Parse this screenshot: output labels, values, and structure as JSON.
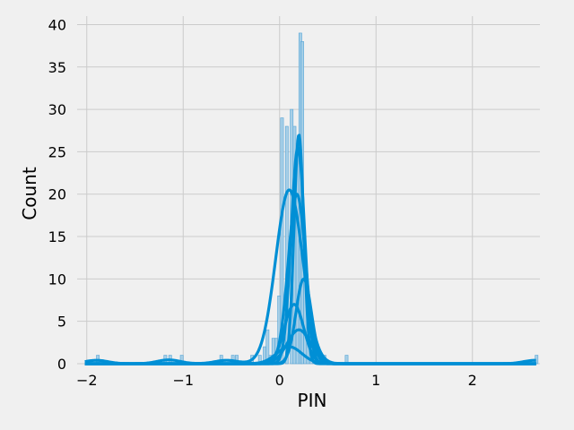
{
  "chart_data": {
    "type": "bar",
    "style": "histogram with kde overlay",
    "title": "",
    "xlabel": "PIN",
    "ylabel": "Count",
    "xlim": [
      -2.1,
      2.7
    ],
    "ylim": [
      0,
      41
    ],
    "xticks": [
      -2,
      -1,
      0,
      1,
      2
    ],
    "xtick_labels": [
      "−2",
      "−1",
      "0",
      "1",
      "2"
    ],
    "yticks": [
      0,
      5,
      10,
      15,
      20,
      25,
      30,
      35,
      40
    ],
    "grid": true,
    "colors": {
      "bar": "#9fcbe6",
      "bar_edge": "#55a5d7",
      "kde": "#008fd5",
      "background": "#f0f0f0",
      "grid": "#cbcbcb"
    },
    "bin_width": 0.03,
    "bins": [
      {
        "x": -1.9,
        "count": 1
      },
      {
        "x": -1.2,
        "count": 1
      },
      {
        "x": -1.15,
        "count": 1
      },
      {
        "x": -1.03,
        "count": 1
      },
      {
        "x": -0.62,
        "count": 1
      },
      {
        "x": -0.5,
        "count": 1
      },
      {
        "x": -0.46,
        "count": 1
      },
      {
        "x": -0.3,
        "count": 1
      },
      {
        "x": -0.22,
        "count": 1
      },
      {
        "x": -0.17,
        "count": 2
      },
      {
        "x": -0.14,
        "count": 4
      },
      {
        "x": -0.11,
        "count": 1
      },
      {
        "x": -0.08,
        "count": 3
      },
      {
        "x": -0.05,
        "count": 3
      },
      {
        "x": -0.02,
        "count": 8
      },
      {
        "x": 0.01,
        "count": 29
      },
      {
        "x": 0.06,
        "count": 28
      },
      {
        "x": 0.11,
        "count": 30
      },
      {
        "x": 0.14,
        "count": 28
      },
      {
        "x": 0.17,
        "count": 26
      },
      {
        "x": 0.2,
        "count": 39
      },
      {
        "x": 0.22,
        "count": 38
      },
      {
        "x": 0.25,
        "count": 12
      },
      {
        "x": 0.28,
        "count": 6
      },
      {
        "x": 0.31,
        "count": 3
      },
      {
        "x": 0.34,
        "count": 2
      },
      {
        "x": 0.37,
        "count": 1
      },
      {
        "x": 0.4,
        "count": 1
      },
      {
        "x": 0.45,
        "count": 1
      },
      {
        "x": 0.68,
        "count": 1
      },
      {
        "x": 2.65,
        "count": 1
      }
    ],
    "kde_curves": [
      {
        "components": [
          {
            "mu": 0.1,
            "sigma": 0.14,
            "amp": 20.5
          },
          {
            "mu": -1.9,
            "sigma": 0.12,
            "amp": 0.4
          },
          {
            "mu": -1.15,
            "sigma": 0.12,
            "amp": 0.45
          },
          {
            "mu": -0.55,
            "sigma": 0.12,
            "amp": 0.4
          },
          {
            "mu": 2.65,
            "sigma": 0.12,
            "amp": 0.4
          }
        ]
      },
      {
        "components": [
          {
            "mu": 0.2,
            "sigma": 0.05,
            "amp": 27
          }
        ]
      },
      {
        "components": [
          {
            "mu": 0.19,
            "sigma": 0.07,
            "amp": 25.5
          }
        ]
      },
      {
        "components": [
          {
            "mu": 0.18,
            "sigma": 0.09,
            "amp": 20
          }
        ]
      },
      {
        "components": [
          {
            "mu": 0.25,
            "sigma": 0.08,
            "amp": 10
          }
        ]
      },
      {
        "components": [
          {
            "mu": 0.15,
            "sigma": 0.1,
            "amp": 7
          }
        ]
      },
      {
        "components": [
          {
            "mu": 0.2,
            "sigma": 0.12,
            "amp": 4
          }
        ]
      },
      {
        "components": [
          {
            "mu": 0.1,
            "sigma": 0.13,
            "amp": 2
          }
        ]
      }
    ]
  }
}
